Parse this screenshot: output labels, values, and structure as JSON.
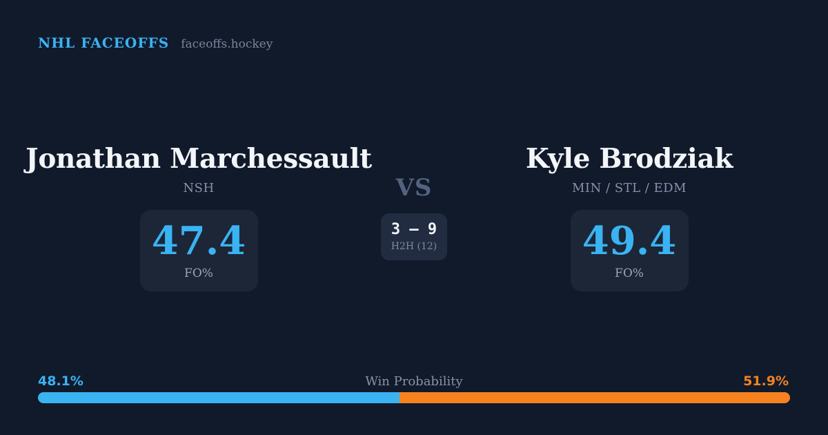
{
  "header": {
    "brand": "NHL FACEOFFS",
    "site": "faceoffs.hockey"
  },
  "player_left": {
    "name": "Jonathan Marchessault",
    "teams": "NSH",
    "fo_value": "47.4",
    "fo_label": "FO%"
  },
  "player_right": {
    "name": "Kyle Brodziak",
    "teams": "MIN / STL / EDM",
    "fo_value": "49.4",
    "fo_label": "FO%"
  },
  "matchup": {
    "vs_label": "VS",
    "h2h_score": "3 – 9",
    "h2h_label": "H2H (12)"
  },
  "win_probability": {
    "title": "Win Probability",
    "left_label": "48.1%",
    "right_label": "51.9%",
    "left_value": 48.1,
    "right_value": 51.9
  },
  "colors": {
    "background": "#101a2b",
    "card": "#1c2637",
    "h2h_card": "#212c40",
    "accent_blue": "#3ab3f3",
    "accent_orange": "#f5821f",
    "name_white": "#f3f5f8",
    "muted_gray": "#8693aa"
  }
}
